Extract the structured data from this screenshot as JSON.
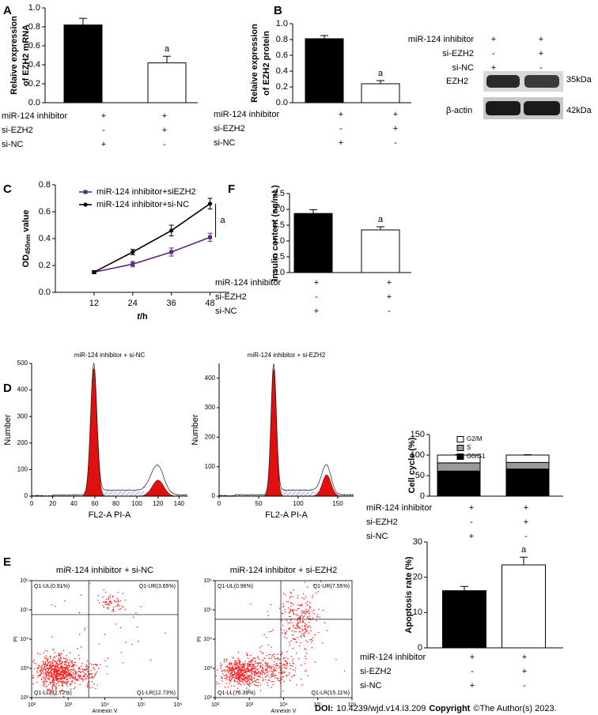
{
  "panel_labels": [
    "A",
    "B",
    "C",
    "F",
    "D",
    "E"
  ],
  "chart_data": [
    {
      "type": "bar",
      "ylabel": [
        "Relaive expression",
        "of EZH2 mRNA"
      ],
      "categories": [
        null,
        null
      ],
      "series": [
        {
          "colors": [
            "#000000",
            "#ffffff"
          ],
          "values": [
            0.82,
            0.42
          ],
          "errors": [
            0.07,
            0.07
          ],
          "value_annotations": [
            null,
            "a"
          ]
        }
      ],
      "ylim": [
        0,
        1
      ],
      "yticks": [
        {
          "value": 0,
          "label": "0.0"
        },
        0.2,
        0.4,
        0.6,
        0.8,
        {
          "value": 1,
          "label": "1.0"
        }
      ],
      "conditions": [
        {
          "label": "miR-124 inhibitor",
          "marks": [
            "+",
            "+"
          ]
        },
        {
          "label": "si-EZH2",
          "marks": [
            "-",
            "+"
          ]
        },
        {
          "label": "si-NC",
          "marks": [
            "+",
            "-"
          ]
        }
      ]
    },
    {
      "type": "bar",
      "ylabel": [
        "Relaive expression",
        "of EZH2 protein"
      ],
      "categories": [
        null,
        null
      ],
      "series": [
        {
          "colors": [
            "#000000",
            "#ffffff"
          ],
          "values": [
            0.81,
            0.24
          ],
          "errors": [
            0.04,
            0.04
          ],
          "value_annotations": [
            null,
            "a"
          ]
        }
      ],
      "ylim": [
        0,
        1
      ],
      "yticks": [
        {
          "value": 0,
          "label": "0.0"
        },
        0.2,
        0.4,
        0.6,
        0.8,
        {
          "value": 1,
          "label": "1.0"
        }
      ],
      "conditions": [
        {
          "label": "miR-124 inhibitor",
          "marks": [
            "+",
            "+"
          ]
        },
        {
          "label": "si-EZH2",
          "marks": [
            "-",
            "+"
          ]
        },
        {
          "label": "si-NC",
          "marks": [
            "+",
            "-"
          ]
        }
      ]
    },
    {
      "type": "line",
      "ylabel": "OD",
      "ylabel_subscript": "450nm",
      "ylabel_suffix": " value",
      "xlabel_italic": "t",
      "xlabel": "/h",
      "x": [
        12,
        24,
        36,
        48
      ],
      "xlim": [
        0,
        54
      ],
      "xticks": [
        12,
        24,
        36,
        48
      ],
      "ylim": [
        0,
        0.8
      ],
      "yticks": [
        {
          "value": 0,
          "label": "0.0"
        },
        0.2,
        0.4,
        0.6,
        0.8
      ],
      "series": [
        {
          "name": "miR-124 inhibitor+siEZH2",
          "color": "#5b2a86",
          "marker": "square",
          "values": [
            0.15,
            0.21,
            0.3,
            0.41
          ],
          "errors": [
            0.01,
            0.02,
            0.03,
            0.03
          ]
        },
        {
          "name": "miR-124 inhibitor+si-NC",
          "color": "#000000",
          "marker": "circle",
          "values": [
            0.15,
            0.3,
            0.46,
            0.66
          ],
          "errors": [
            0.01,
            0.02,
            0.04,
            0.04
          ]
        }
      ],
      "annotation": "a"
    },
    {
      "type": "bar",
      "ylabel": [
        "Insulin content (ng/mL)"
      ],
      "categories": [
        null,
        null
      ],
      "series": [
        {
          "colors": [
            "#000000",
            "#ffffff"
          ],
          "values": [
            1.87,
            1.35
          ],
          "errors": [
            0.12,
            0.1
          ],
          "value_annotations": [
            null,
            "a"
          ]
        }
      ],
      "ylim": [
        0,
        2.5
      ],
      "yticks": [
        {
          "value": 0,
          "label": "0.0"
        },
        0.5,
        {
          "value": 1,
          "label": "1.0"
        },
        1.5,
        {
          "value": 2,
          "label": "2.0"
        },
        2.5
      ],
      "conditions": [
        {
          "label": "miR-124 inhibitor",
          "marks": [
            "+",
            "+"
          ]
        },
        {
          "label": "si-EZH2",
          "marks": [
            "-",
            "+"
          ]
        },
        {
          "label": "si-NC",
          "marks": [
            "+",
            "-"
          ]
        }
      ]
    },
    {
      "type": "bar",
      "stacked": true,
      "ylabel": [
        "Cell cycle (%)"
      ],
      "categories": [
        null,
        null
      ],
      "series": [
        {
          "name": "G0/G1",
          "color": "#000000",
          "values": [
            61,
            66
          ],
          "errors": [
            1,
            2
          ],
          "value_annotations": [
            null,
            "a"
          ]
        },
        {
          "name": "S",
          "color": "#999999",
          "values": [
            20,
            16
          ],
          "errors": [
            1,
            1
          ],
          "value_annotations": [
            null,
            "a"
          ]
        },
        {
          "name": "G2/M",
          "color": "#ffffff",
          "values": [
            19,
            18
          ],
          "errors": [
            1,
            1
          ]
        }
      ],
      "ylim": [
        0,
        150
      ],
      "yticks": [
        0,
        50,
        100,
        150
      ],
      "conditions": [
        {
          "label": "miR-124 inhibitor",
          "marks": [
            "+",
            "+"
          ]
        },
        {
          "label": "si-EZH2",
          "marks": [
            "-",
            "+"
          ]
        },
        {
          "label": "si-NC",
          "marks": [
            "+",
            "-"
          ]
        }
      ]
    },
    {
      "type": "bar",
      "ylabel": [
        "Apoptosis rate (%)"
      ],
      "categories": [
        null,
        null
      ],
      "series": [
        {
          "colors": [
            "#000000",
            "#ffffff"
          ],
          "values": [
            16.2,
            23.5
          ],
          "errors": [
            1.2,
            2.2
          ],
          "value_annotations": [
            null,
            "a"
          ]
        }
      ],
      "ylim": [
        0,
        30
      ],
      "yticks": [
        0,
        10,
        20,
        30
      ],
      "conditions": [
        {
          "label": "miR-124 inhibitor",
          "marks": [
            "+",
            "+"
          ]
        },
        {
          "label": "si-EZH2",
          "marks": [
            "-",
            "+"
          ]
        },
        {
          "label": "si-NC",
          "marks": [
            "+",
            "-"
          ]
        }
      ]
    }
  ],
  "western_blot": {
    "conditions": [
      {
        "label": "miR-124 inhibitor",
        "marks": [
          "+",
          "+"
        ]
      },
      {
        "label": "si-EZH2",
        "marks": [
          "-",
          "+"
        ]
      },
      {
        "label": "si-NC",
        "marks": [
          "+",
          "-"
        ]
      }
    ],
    "bands": [
      {
        "label": "EZH2",
        "size": "35kDa"
      },
      {
        "label": "β-actin",
        "size": "42kDa"
      }
    ]
  },
  "flow_cytometry": {
    "histograms": [
      {
        "title": "miR-124 inhibitor + si-NC",
        "xlabel": "FL2-A PI-A",
        "ylabel": "Number",
        "xlim": [
          0,
          148
        ],
        "ylim": [
          0,
          500
        ],
        "xticks": [
          0,
          20,
          40,
          60,
          80,
          100,
          120,
          140
        ],
        "yticks": [
          0,
          100,
          200,
          300,
          400,
          500
        ]
      },
      {
        "title": "miR-124 inhibitor + si-EZH2",
        "xlabel": "FL2-A PI-A",
        "ylabel": "Number",
        "xlim": [
          0,
          170
        ],
        "ylim": [
          0,
          450
        ],
        "xticks": [
          0,
          50,
          100,
          150
        ],
        "yticks": [
          0,
          100,
          200,
          300,
          400
        ]
      }
    ],
    "dot_plots": [
      {
        "title": "miR-124 inhibitor + si-NC",
        "xlabel": "Annexin V",
        "ylabel": "PI",
        "log": true,
        "xlim": [
          100,
          1000000
        ],
        "ylim": [
          100,
          1000000
        ],
        "xticks": [
          {
            "value": 100,
            "label": "10²"
          },
          {
            "value": 1000,
            "label": "10³"
          },
          {
            "value": 10000,
            "label": "10⁴"
          },
          {
            "value": 100000,
            "label": "10⁵"
          },
          {
            "value": 1000000,
            "label": "10⁶"
          }
        ],
        "yticks": [
          {
            "value": 100,
            "label": "10²"
          },
          {
            "value": 1000,
            "label": "10³"
          },
          {
            "value": 10000,
            "label": "10⁴"
          },
          {
            "value": 100000,
            "label": "10⁵"
          },
          {
            "value": 1000000,
            "label": "10⁶"
          }
        ],
        "quadrants": {
          "UL": "Q1-UL(0.91%)",
          "UR": "Q1-UR(3.65%)",
          "LL": "Q1-LL(82.72%)",
          "LR": "Q1-LR(12.73%)"
        }
      },
      {
        "title": "miR-124 inhibitor + si-EZH2",
        "xlabel": "Annexin V",
        "ylabel": "PI",
        "log": true,
        "xlim": [
          100,
          1000000
        ],
        "ylim": [
          100,
          1000000
        ],
        "xticks": [
          {
            "value": 100,
            "label": "10²"
          },
          {
            "value": 1000,
            "label": "10³"
          },
          {
            "value": 10000,
            "label": "10⁴"
          },
          {
            "value": 100000,
            "label": "10⁵"
          },
          {
            "value": 1000000,
            "label": "10⁶"
          }
        ],
        "yticks": [
          {
            "value": 100,
            "label": "10²"
          },
          {
            "value": 1000,
            "label": "10³"
          },
          {
            "value": 10000,
            "label": "10⁴"
          },
          {
            "value": 100000,
            "label": "10⁵"
          },
          {
            "value": 1000000,
            "label": "10⁶"
          }
        ],
        "quadrants": {
          "UL": "Q1-UL(0.96%)",
          "UR": "Q1-UR(7.55%)",
          "LL": "Q1-LL(76.39%)",
          "LR": "Q1-LR(15.11%)"
        }
      }
    ]
  },
  "footer": {
    "doi_label": "DOI:",
    "doi": "10.4239/wjd.v14.i3.209",
    "copyright_label": "Copyright",
    "copyright": "©The Author(s) 2023."
  }
}
